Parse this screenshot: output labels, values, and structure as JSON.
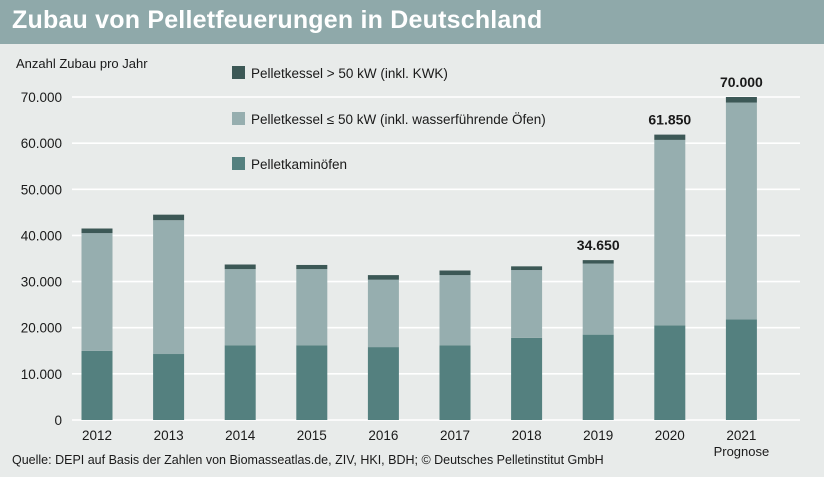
{
  "header": {
    "title": "Zubau von Pelletfeuerungen in Deutschland"
  },
  "source": "Quelle: DEPI auf Basis der Zahlen von Biomasseatlas.de, ZIV, HKI, BDH; © Deutsches Pelletinstitut GmbH",
  "colors": {
    "header_bg": "#8fa9aa",
    "background": "#e8ebea",
    "series_kaminoefen": "#54807f",
    "series_kessel_small": "#96aeaf",
    "series_kessel_large": "#3c5856"
  },
  "chart_data": {
    "type": "bar",
    "stacked": true,
    "ylabel": "Anzahl Zubau pro Jahr",
    "xlabel": "",
    "ylim": [
      0,
      70000
    ],
    "yticks": [
      "0",
      "10.000",
      "20.000",
      "30.000",
      "40.000",
      "50.000",
      "60.000",
      "70.000"
    ],
    "grid": true,
    "legend_position": "top-center",
    "categories": [
      "2012",
      "2013",
      "2014",
      "2015",
      "2016",
      "2017",
      "2018",
      "2019",
      "2020",
      "2021"
    ],
    "category_sublabels": [
      "",
      "",
      "",
      "",
      "",
      "",
      "",
      "",
      "",
      "Prognose"
    ],
    "series": [
      {
        "name": "Pelletkaminöfen",
        "color": "#54807f",
        "values": [
          15000,
          14300,
          16200,
          16200,
          15800,
          16200,
          17800,
          18500,
          20500,
          21800
        ]
      },
      {
        "name": "Pelletkessel ≤ 50 kW (inkl. wasserführende Öfen)",
        "color": "#96aeaf",
        "values": [
          25500,
          29000,
          16500,
          16500,
          14600,
          15200,
          14700,
          15400,
          40200,
          47000
        ]
      },
      {
        "name": "Pelletkessel > 50 kW (inkl. KWK)",
        "color": "#3c5856",
        "values": [
          1000,
          1200,
          1000,
          900,
          1000,
          1000,
          800,
          750,
          1150,
          1200
        ]
      }
    ],
    "legend_order": [
      2,
      1,
      0
    ],
    "annotations": [
      {
        "category": "2019",
        "text": "34.650"
      },
      {
        "category": "2020",
        "text": "61.850"
      },
      {
        "category": "2021",
        "text": "70.000"
      }
    ]
  }
}
